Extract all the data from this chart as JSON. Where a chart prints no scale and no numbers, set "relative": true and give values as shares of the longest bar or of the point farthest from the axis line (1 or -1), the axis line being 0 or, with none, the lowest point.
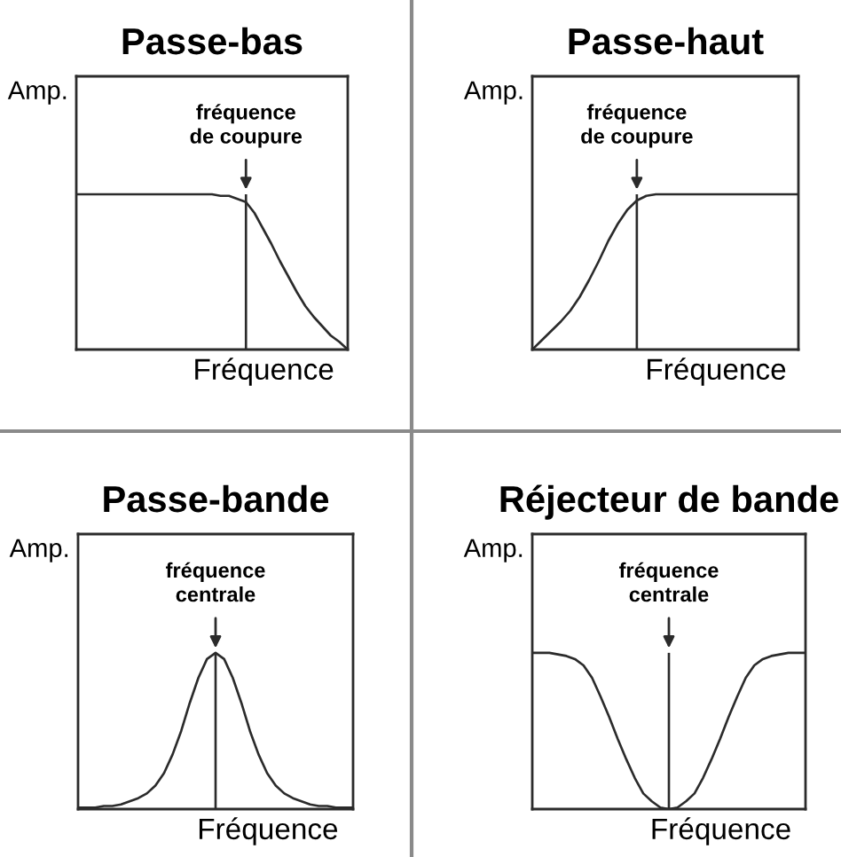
{
  "chart_data": [
    {
      "type": "line",
      "title": "Passe-bas",
      "xlabel": "Fréquence",
      "ylabel": "Amp.",
      "categories": [
        null,
        null,
        null,
        null,
        null,
        null,
        null,
        null,
        null,
        null,
        null,
        null,
        null,
        null,
        null,
        null,
        null,
        null,
        null,
        null,
        null,
        null,
        null,
        null,
        null,
        null,
        null,
        null,
        null,
        null,
        null,
        null,
        null
      ],
      "relative": true,
      "line_style": "solid",
      "series": [
        {
          "color": "#2b2b2b",
          "values": [
            1,
            1,
            1,
            1,
            1,
            1,
            1,
            1,
            1,
            1,
            1,
            1,
            1,
            1,
            1,
            1,
            1,
            0.99,
            0.99,
            0.97,
            0.95,
            0.88,
            0.78,
            0.68,
            0.57,
            0.47,
            0.37,
            0.28,
            0.21,
            0.15,
            0.09,
            0.05,
            0
          ]
        }
      ],
      "annotations": [
        {
          "text": "fréquence\nde coupure",
          "y": 0.95
        }
      ]
    },
    {
      "type": "line",
      "title": "Passe-haut",
      "xlabel": "Fréquence",
      "ylabel": "Amp.",
      "categories": [
        null,
        null,
        null,
        null,
        null,
        null,
        null,
        null,
        null,
        null,
        null,
        null,
        null,
        null,
        null,
        null,
        null,
        null,
        null,
        null,
        null,
        null,
        null,
        null,
        null,
        null,
        null,
        null,
        null
      ],
      "relative": true,
      "line_style": "solid",
      "series": [
        {
          "color": "#2b2b2b",
          "values": [
            0,
            0.06,
            0.12,
            0.18,
            0.25,
            0.34,
            0.45,
            0.57,
            0.7,
            0.81,
            0.9,
            0.96,
            0.99,
            1,
            1,
            1,
            1,
            1,
            1,
            1,
            1,
            1,
            1,
            1,
            1,
            1,
            1,
            1,
            1
          ]
        }
      ],
      "annotations": [
        {
          "text": "fréquence\nde coupure",
          "y": 0.96
        }
      ]
    },
    {
      "type": "line",
      "title": "Passe-bande",
      "xlabel": "Fréquence",
      "ylabel": "Amp.",
      "categories": [
        null,
        null,
        null,
        null,
        null,
        null,
        null,
        null,
        null,
        null,
        null,
        null,
        null,
        null,
        null,
        null,
        null,
        null,
        null,
        null,
        null,
        null,
        null,
        null,
        null,
        null,
        null,
        null,
        null,
        null,
        null,
        null,
        null
      ],
      "relative": true,
      "line_style": "solid",
      "series": [
        {
          "color": "#2b2b2b",
          "values": [
            0.01,
            0.01,
            0.01,
            0.02,
            0.02,
            0.03,
            0.05,
            0.07,
            0.1,
            0.15,
            0.23,
            0.35,
            0.5,
            0.68,
            0.84,
            0.96,
            1,
            0.96,
            0.84,
            0.68,
            0.5,
            0.35,
            0.23,
            0.15,
            0.1,
            0.07,
            0.05,
            0.03,
            0.02,
            0.02,
            0.01,
            0.01,
            0.01
          ]
        }
      ],
      "annotations": [
        {
          "text": "fréquence\ncentrale",
          "y": 1
        }
      ]
    },
    {
      "type": "line",
      "title": "Réjecteur de bande",
      "xlabel": "Fréquence",
      "ylabel": "Amp.",
      "categories": [
        null,
        null,
        null,
        null,
        null,
        null,
        null,
        null,
        null,
        null,
        null,
        null,
        null,
        null,
        null,
        null,
        null,
        null,
        null,
        null,
        null,
        null,
        null,
        null,
        null,
        null,
        null,
        null,
        null,
        null,
        null,
        null,
        null
      ],
      "relative": true,
      "line_style": "solid",
      "series": [
        {
          "color": "#2b2b2b",
          "values": [
            1,
            1,
            1,
            0.99,
            0.98,
            0.96,
            0.92,
            0.84,
            0.72,
            0.59,
            0.45,
            0.32,
            0.2,
            0.1,
            0.05,
            0.01,
            0,
            0.01,
            0.05,
            0.1,
            0.2,
            0.32,
            0.45,
            0.59,
            0.72,
            0.84,
            0.92,
            0.96,
            0.98,
            0.99,
            1,
            1,
            1
          ]
        }
      ],
      "annotations": [
        "fréquence\ncentrale"
      ]
    }
  ]
}
